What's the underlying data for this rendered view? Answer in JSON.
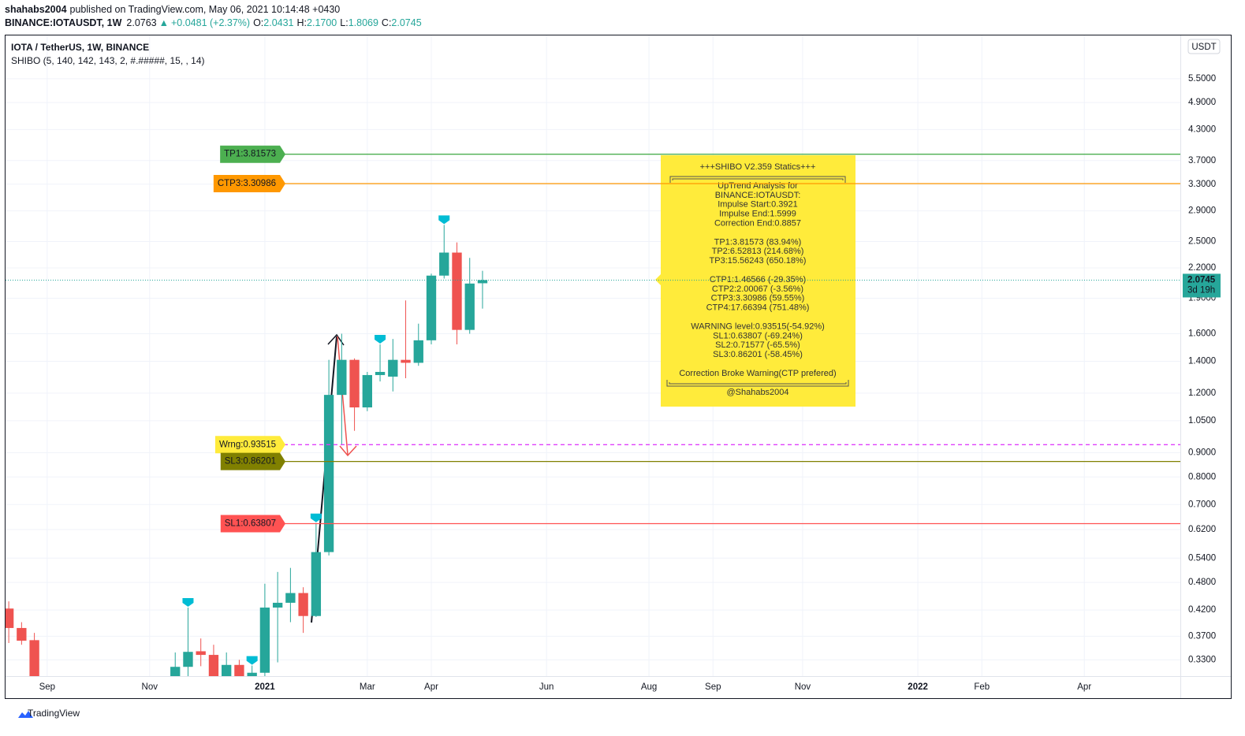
{
  "header": {
    "publisher": "shahabs2004",
    "published": "published on TradingView.com, May 06, 2021 10:14:48 +0430",
    "symbol": "BINANCE:IOTAUSDT, 1W",
    "last": "2.0763",
    "arrow": "▲",
    "change": "+0.0481 (+2.37%)",
    "o_label": "O:",
    "open": "2.0431",
    "h_label": "H:",
    "high": "2.1700",
    "l_label": "L:",
    "low": "1.8069",
    "c_label": "C:",
    "close": "2.0745"
  },
  "footer": "TradingView",
  "chart_data": {
    "type": "candlestick",
    "title": "IOTA / TetherUS, 1W, BINANCE",
    "subtitle": "SHIBO (5, 140, 142, 143, 2, #.#####, 15, , 14)",
    "currency": "USDT",
    "log_scale": true,
    "grid": true,
    "up_color": "#26a69a",
    "down_color": "#ef5350",
    "categories": [
      null,
      null,
      null,
      "Sep",
      null,
      null,
      null,
      null,
      null,
      null,
      null,
      "Nov",
      null,
      null,
      null,
      null,
      null,
      null,
      null,
      null,
      "2021",
      null,
      null,
      null,
      null,
      null,
      null,
      null,
      "Mar",
      null,
      null,
      null,
      null,
      "Apr",
      null,
      null,
      null,
      null,
      null,
      null,
      null,
      null,
      "Jun",
      null,
      null,
      null,
      null,
      null,
      null,
      null,
      "Aug",
      null,
      null,
      null,
      null,
      "Sep",
      null,
      null,
      null,
      null,
      null,
      null,
      "Nov",
      null,
      null,
      null,
      null,
      null,
      null,
      null,
      null,
      "2022",
      null,
      null,
      null,
      null,
      "Feb",
      null,
      null,
      null,
      null,
      null,
      null,
      null,
      "Apr",
      null,
      null,
      null,
      null,
      null,
      null,
      null
    ],
    "open": [
      0.423,
      0.385,
      0.363,
      null,
      null,
      null,
      null,
      null,
      null,
      null,
      null,
      null,
      null,
      0.3,
      0.319,
      0.344,
      0.338,
      0.3,
      0.322,
      0.3,
      0.31,
      0.425,
      0.435,
      0.456,
      0.408,
      0.556,
      1.19,
      1.41,
      1.12,
      1.31,
      1.3,
      1.41,
      1.39,
      1.55,
      2.12,
      2.37,
      1.63,
      2.0431,
      null,
      null,
      null,
      null,
      null,
      null,
      null,
      null,
      null,
      null,
      null,
      null,
      null,
      null,
      null,
      null,
      null,
      null,
      null,
      null,
      null,
      null,
      null,
      null,
      null,
      null,
      null,
      null,
      null,
      null,
      null,
      null,
      null,
      null,
      null,
      null,
      null,
      null,
      null,
      null,
      null,
      null,
      null,
      null,
      null,
      null,
      null,
      null,
      null,
      null,
      null,
      null,
      null,
      null
    ],
    "high": [
      0.438,
      0.396,
      0.376,
      null,
      null,
      null,
      null,
      null,
      null,
      null,
      null,
      null,
      null,
      0.342,
      0.425,
      0.366,
      0.355,
      0.342,
      0.33,
      0.321,
      0.477,
      0.505,
      0.515,
      0.469,
      0.64,
      1.41,
      1.6,
      1.42,
      1.33,
      1.52,
      1.56,
      1.88,
      1.68,
      2.14,
      2.71,
      2.49,
      2.31,
      2.17,
      null,
      null,
      null,
      null,
      null,
      null,
      null,
      null,
      null,
      null,
      null,
      null,
      null,
      null,
      null,
      null,
      null,
      null,
      null,
      null,
      null,
      null,
      null,
      null,
      null,
      null,
      null,
      null,
      null,
      null,
      null,
      null,
      null,
      null,
      null,
      null,
      null,
      null,
      null,
      null,
      null,
      null,
      null,
      null,
      null,
      null,
      null,
      null,
      null,
      null,
      null,
      null,
      null,
      null
    ],
    "low": [
      0.358,
      0.355,
      0.29,
      null,
      null,
      null,
      null,
      null,
      null,
      null,
      null,
      null,
      null,
      0.29,
      0.305,
      0.32,
      0.29,
      0.29,
      0.29,
      0.29,
      0.305,
      0.326,
      0.396,
      0.376,
      0.406,
      0.547,
      0.932,
      1.0,
      1.1,
      1.27,
      1.21,
      1.29,
      1.37,
      1.52,
      2.09,
      1.52,
      1.6,
      1.8069,
      null,
      null,
      null,
      null,
      null,
      null,
      null,
      null,
      null,
      null,
      null,
      null,
      null,
      null,
      null,
      null,
      null,
      null,
      null,
      null,
      null,
      null,
      null,
      null,
      null,
      null,
      null,
      null,
      null,
      null,
      null,
      null,
      null,
      null,
      null,
      null,
      null,
      null,
      null,
      null,
      null,
      null,
      null,
      null,
      null,
      null,
      null,
      null,
      null,
      null,
      null,
      null,
      null,
      null
    ],
    "close": [
      0.385,
      0.362,
      0.3,
      null,
      null,
      null,
      null,
      null,
      null,
      null,
      null,
      null,
      null,
      0.319,
      0.343,
      0.338,
      0.3,
      0.322,
      0.3,
      0.31,
      0.425,
      0.435,
      0.456,
      0.408,
      0.556,
      1.19,
      1.41,
      1.12,
      1.31,
      1.33,
      1.41,
      1.39,
      1.55,
      2.12,
      2.37,
      1.63,
      2.04,
      2.0745,
      null,
      null,
      null,
      null,
      null,
      null,
      null,
      null,
      null,
      null,
      null,
      null,
      null,
      null,
      null,
      null,
      null,
      null,
      null,
      null,
      null,
      null,
      null,
      null,
      null,
      null,
      null,
      null,
      null,
      null,
      null,
      null,
      null,
      null,
      null,
      null,
      null,
      null,
      null,
      null,
      null,
      null,
      null,
      null,
      null,
      null,
      null,
      null,
      null,
      null,
      null,
      null,
      null,
      null
    ],
    "ylim": [
      0.305,
      6.78
    ],
    "yticks": [
      {
        "value": 0.33,
        "label": "0.3300"
      },
      {
        "value": 0.37,
        "label": "0.3700"
      },
      {
        "value": 0.42,
        "label": "0.4200"
      },
      {
        "value": 0.48,
        "label": "0.4800"
      },
      {
        "value": 0.54,
        "label": "0.5400"
      },
      {
        "value": 0.62,
        "label": "0.6200"
      },
      {
        "value": 0.7,
        "label": "0.7000"
      },
      {
        "value": 0.8,
        "label": "0.8000"
      },
      {
        "value": 0.9,
        "label": "0.9000"
      },
      {
        "value": 1.05,
        "label": "1.0500"
      },
      {
        "value": 1.2,
        "label": "1.2000"
      },
      {
        "value": 1.4,
        "label": "1.4000"
      },
      {
        "value": 1.6,
        "label": "1.6000"
      },
      {
        "value": 1.9,
        "label": "1.9000"
      },
      {
        "value": 2.2,
        "label": "2.2000"
      },
      {
        "value": 2.5,
        "label": "2.5000"
      },
      {
        "value": 2.9,
        "label": "2.9000"
      },
      {
        "value": 3.3,
        "label": "3.3000"
      },
      {
        "value": 3.7,
        "label": "3.7000"
      },
      {
        "value": 4.3,
        "label": "4.3000"
      },
      {
        "value": 4.9,
        "label": "4.9000"
      },
      {
        "value": 5.5,
        "label": "5.5000"
      }
    ],
    "last_price": {
      "value": 2.0745,
      "countdown": "3d 19h"
    },
    "levels": [
      {
        "label": "TP1:3.81573",
        "value": 3.81573,
        "color": "#4caf50",
        "text_color": "#ffffff",
        "dashed": false
      },
      {
        "label": "CTP3:3.30986",
        "value": 3.30986,
        "color": "#ff9800",
        "text_color": "#ffffff",
        "dashed": false
      },
      {
        "label": "Wrng:0.93515",
        "value": 0.93515,
        "color": "#ffeb3b",
        "line_color": "#e040fb",
        "text_color": "#333333",
        "dashed": true
      },
      {
        "label": "SL3:0.86201",
        "value": 0.86201,
        "color": "#808000",
        "text_color": "#333333",
        "dashed": false
      },
      {
        "label": "SL1:0.63807",
        "value": 0.63807,
        "color": "#ff5252",
        "text_color": "#ffffff",
        "dashed": false
      }
    ],
    "stats_box": {
      "title": "+++SHIBO V2.359 Statics+++",
      "groups": [
        [
          "UpTrend Analysis for",
          "BINANCE:IOTAUSDT:",
          "Impulse Start:0.3921",
          "Impulse End:1.5999",
          "Correction End:0.8857"
        ],
        [
          "TP1:3.81573 (83.94%)",
          "TP2:6.52813 (214.68%)",
          "TP3:15.56243 (650.18%)"
        ],
        [
          "CTP1:1.46566 (-29.35%)",
          "CTP2:2.00067 (-3.56%)",
          "CTP3:3.30986 (59.55%)",
          "CTP4:17.66394 (751.48%)"
        ],
        [
          "WARNING level:0.93515(-54.92%)",
          "SL1:0.63807 (-69.24%)",
          "SL2:0.71577 (-65.5%)",
          "SL3:0.86201 (-58.45%)"
        ],
        [
          "Correction Broke Warning(CTP prefered)"
        ]
      ],
      "signature": "@Shahabs2004"
    }
  }
}
